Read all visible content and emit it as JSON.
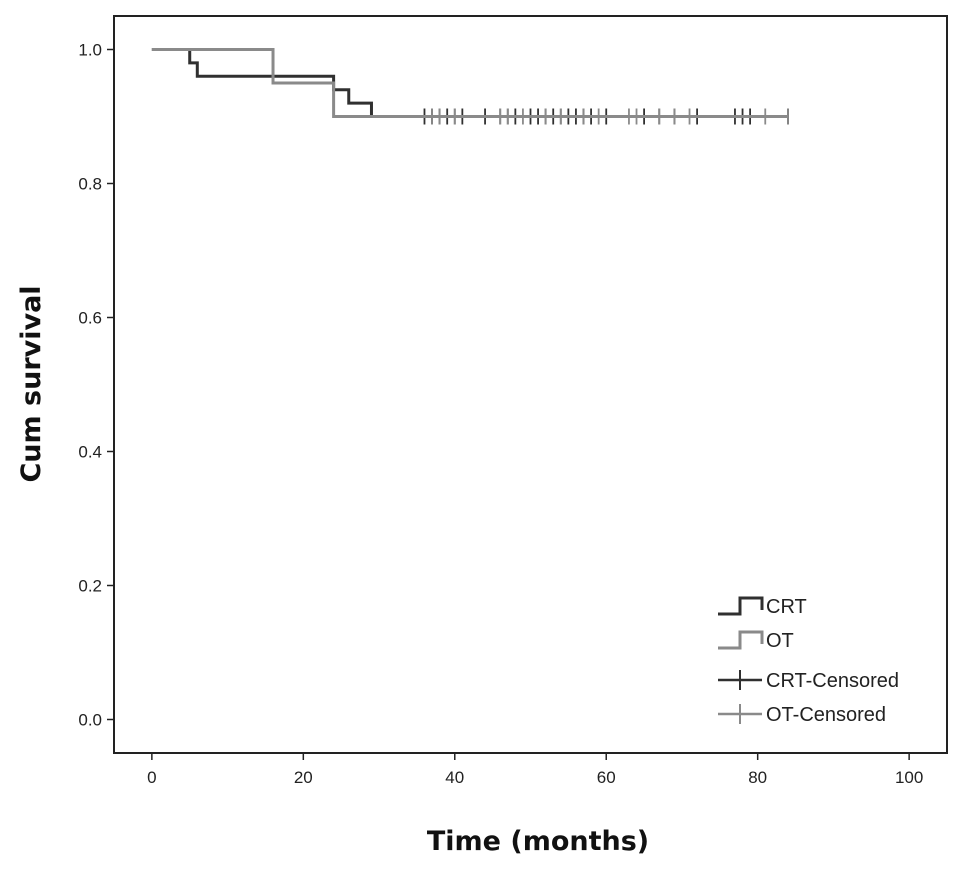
{
  "chart_data": {
    "type": "line",
    "subtype": "kaplan-meier step",
    "title": "",
    "xlabel": "Time (months)",
    "ylabel": "Cum survival",
    "xlim": [
      -5,
      105
    ],
    "ylim": [
      -0.05,
      1.05
    ],
    "x_ticks": [
      0,
      20,
      40,
      60,
      80,
      100
    ],
    "y_ticks": [
      0.0,
      0.2,
      0.4,
      0.6,
      0.8,
      1.0
    ],
    "y_tick_labels": [
      "0.0",
      "0.2",
      "0.4",
      "0.6",
      "0.8",
      "1.0"
    ],
    "grid": false,
    "legend_position": "bottom-right",
    "colors": {
      "CRT": "#303030",
      "OT": "#8a8a8a"
    },
    "series": [
      {
        "name": "CRT",
        "steps": [
          [
            0,
            1.0
          ],
          [
            5,
            0.98
          ],
          [
            6,
            0.96
          ],
          [
            24,
            0.94
          ],
          [
            26,
            0.92
          ],
          [
            29,
            0.9
          ],
          [
            84,
            0.9
          ]
        ],
        "censored": [
          36,
          37,
          38,
          39,
          40,
          41,
          44,
          46,
          47,
          48,
          50,
          51,
          52,
          53,
          54,
          55,
          56,
          57,
          58,
          60,
          65,
          67,
          69,
          72,
          77,
          78,
          79,
          84
        ]
      },
      {
        "name": "OT",
        "steps": [
          [
            0,
            1.0
          ],
          [
            16,
            0.95
          ],
          [
            24,
            0.9
          ],
          [
            84,
            0.9
          ]
        ],
        "censored": [
          37,
          38,
          40,
          46,
          47,
          49,
          52,
          54,
          57,
          59,
          63,
          64,
          67,
          69,
          71,
          81,
          84
        ]
      }
    ],
    "legend": [
      "CRT",
      "OT",
      "CRT-Censored",
      "OT-Censored"
    ]
  }
}
